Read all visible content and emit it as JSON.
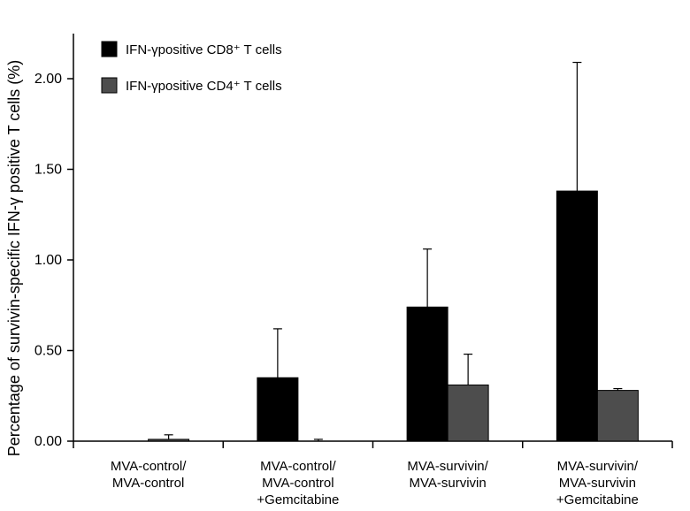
{
  "chart_data": {
    "type": "bar",
    "title": "",
    "xlabel": "",
    "ylabel": "Percentage of survivin-specific IFN-γ positive T cells (%)",
    "ylim": [
      0,
      2.25
    ],
    "yticks": [
      "0.00",
      "0.50",
      "1.00",
      "1.50",
      "2.00"
    ],
    "grid": false,
    "legend_position": "top-left",
    "categories": [
      [
        "MVA-control/",
        "MVA-control"
      ],
      [
        "MVA-control/",
        "MVA-control",
        "+Gemcitabine"
      ],
      [
        "MVA-survivin/",
        "MVA-survivin"
      ],
      [
        "MVA-survivin/",
        "MVA-survivin",
        "+Gemcitabine"
      ]
    ],
    "series": [
      {
        "name": "IFN-γpositive CD8⁺ T cells",
        "color": "#000000",
        "values": [
          0.0,
          0.35,
          0.74,
          1.38
        ],
        "error": [
          0.0,
          0.27,
          0.32,
          0.71
        ]
      },
      {
        "name": "IFN-γpositive CD4⁺ T cells",
        "color": "#4d4d4d",
        "values": [
          0.01,
          0.0,
          0.31,
          0.28
        ],
        "error": [
          0.025,
          0.01,
          0.17,
          0.01
        ]
      }
    ]
  }
}
